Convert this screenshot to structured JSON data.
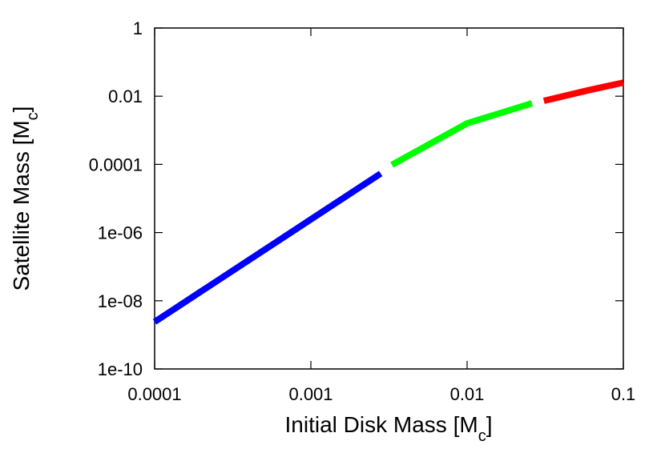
{
  "chart_data": {
    "type": "line",
    "xlabel": {
      "text": "Initial Disk Mass [M",
      "sub": "c",
      "end": "]"
    },
    "ylabel": {
      "text": "Satellite Mass [M",
      "sub": "c",
      "end": "]"
    },
    "xscale": "log",
    "yscale": "log",
    "xlim": [
      0.0001,
      0.1
    ],
    "ylim": [
      1e-10,
      1
    ],
    "xticks": [
      0.0001,
      0.001,
      0.01,
      0.1
    ],
    "yticks": [
      {
        "value": 1e-10,
        "label": "1e-10"
      },
      {
        "value": 1e-08,
        "label": "1e-08"
      },
      {
        "value": 1e-06,
        "label": "1e-06"
      },
      0.0001,
      0.01,
      1
    ],
    "series": [
      {
        "color": "#0000ff",
        "x": [
          0.0001,
          0.0028
        ],
        "values": [
          2.4e-09,
          5.4e-05
        ]
      },
      {
        "color": "#00ff00",
        "x": [
          0.0033,
          0.01,
          0.026
        ],
        "values": [
          9.7e-05,
          0.0016,
          0.0062
        ]
      },
      {
        "color": "#ff0000",
        "x": [
          0.031,
          0.06,
          0.1
        ],
        "values": [
          0.0073,
          0.015,
          0.025
        ]
      }
    ]
  }
}
